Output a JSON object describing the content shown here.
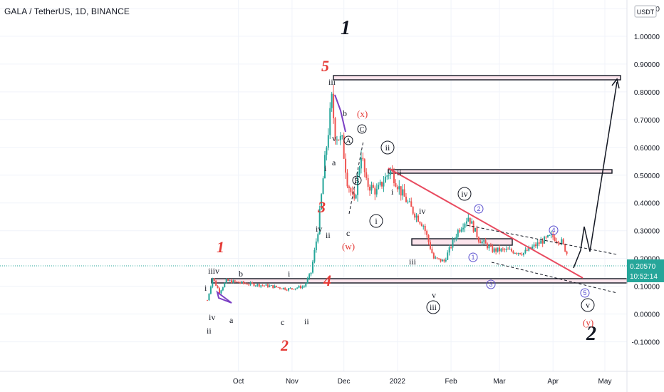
{
  "title": "GALA / TetherUS, 1D, BINANCE",
  "currency_badge": "USDT",
  "price_label": "0.20570",
  "countdown_label": "10:52:14",
  "colors": {
    "up": "#26a69a",
    "down": "#ef5350",
    "red_text": "#e53935",
    "count_blue": "#5a4fcf",
    "purple": "#7b3fc4",
    "trend_red": "#e84a5f",
    "price_tag": "#26a69a",
    "grid": "#f0f3fa",
    "axis_text": "#131722"
  },
  "chart_data": {
    "type": "candlestick",
    "title": "GALA / TetherUS, 1D, BINANCE",
    "ylim": [
      -0.16,
      1.11
    ],
    "y_ticks": [
      "1.10000",
      "1.00000",
      "0.90000",
      "0.80000",
      "0.70000",
      "0.60000",
      "0.50000",
      "0.40000",
      "0.30000",
      "0.20000",
      "0.10000",
      "0.00000",
      "-0.10000"
    ],
    "x_ticks": [
      "Oct",
      "Nov",
      "Dec",
      "2022",
      "Feb",
      "Mar",
      "Apr",
      "May"
    ],
    "last_price": 0.2057,
    "series": [
      {
        "date": "2021-09-13",
        "close": 0.05
      },
      {
        "date": "2021-09-16",
        "close": 0.13
      },
      {
        "date": "2021-09-20",
        "close": 0.08
      },
      {
        "date": "2021-09-24",
        "close": 0.12
      },
      {
        "date": "2021-10-05",
        "close": 0.11
      },
      {
        "date": "2021-10-20",
        "close": 0.1
      },
      {
        "date": "2021-10-30",
        "close": 0.09
      },
      {
        "date": "2021-11-08",
        "close": 0.1
      },
      {
        "date": "2021-11-12",
        "close": 0.15
      },
      {
        "date": "2021-11-16",
        "close": 0.3
      },
      {
        "date": "2021-11-20",
        "close": 0.55
      },
      {
        "date": "2021-11-24",
        "close": 0.77
      },
      {
        "date": "2021-11-26",
        "close": 0.65
      },
      {
        "date": "2021-11-30",
        "close": 0.62
      },
      {
        "date": "2021-12-03",
        "close": 0.48
      },
      {
        "date": "2021-12-07",
        "close": 0.4
      },
      {
        "date": "2021-12-11",
        "close": 0.58
      },
      {
        "date": "2021-12-14",
        "close": 0.47
      },
      {
        "date": "2021-12-20",
        "close": 0.44
      },
      {
        "date": "2021-12-28",
        "close": 0.52
      },
      {
        "date": "2022-01-03",
        "close": 0.44
      },
      {
        "date": "2022-01-10",
        "close": 0.37
      },
      {
        "date": "2022-01-16",
        "close": 0.32
      },
      {
        "date": "2022-01-22",
        "close": 0.2
      },
      {
        "date": "2022-01-28",
        "close": 0.19
      },
      {
        "date": "2022-02-05",
        "close": 0.3
      },
      {
        "date": "2022-02-11",
        "close": 0.35
      },
      {
        "date": "2022-02-17",
        "close": 0.27
      },
      {
        "date": "2022-02-25",
        "close": 0.23
      },
      {
        "date": "2022-03-05",
        "close": 0.23
      },
      {
        "date": "2022-03-15",
        "close": 0.22
      },
      {
        "date": "2022-03-25",
        "close": 0.26
      },
      {
        "date": "2022-03-31",
        "close": 0.28
      },
      {
        "date": "2022-04-06",
        "close": 0.26
      },
      {
        "date": "2022-04-10",
        "close": 0.2057
      }
    ]
  },
  "annotations": {
    "n_black_1": "1",
    "n_black_2": "2",
    "n_red_5": "5",
    "n_red_1": "1",
    "n_red_2": "2",
    "n_red_3": "3",
    "n_red_4": "4",
    "l_iiiv": "iiiv",
    "l_b1": "b",
    "l_i1": "i",
    "l_i2": "i",
    "l_iv1": "iv",
    "l_a1": "a",
    "l_c1": "c",
    "l_ii1": "ii",
    "l_ii2": "ii",
    "l_iii_top": "iii",
    "l_b2": "b",
    "l_v2": "v",
    "l_a2": "a",
    "l_i3": "i",
    "l_ii3": "ii",
    "l_iv2": "iv",
    "l_c2": "c",
    "l_i4": "i",
    "l_ii4": "ii",
    "l_iv3": "iv",
    "l_iii2": "iii",
    "l_v3": "v",
    "r_x": "(x)",
    "r_w": "(w)",
    "r_y": "(y)",
    "c_A": "A",
    "c_B": "B",
    "c_C": "C",
    "c_ii": "ii",
    "c_i": "i",
    "c_iv": "iv",
    "c_iii": "iii",
    "c_v": "v",
    "b_1": "1",
    "b_2": "2",
    "b_3": "3",
    "b_4": "4",
    "b_5": "5"
  }
}
